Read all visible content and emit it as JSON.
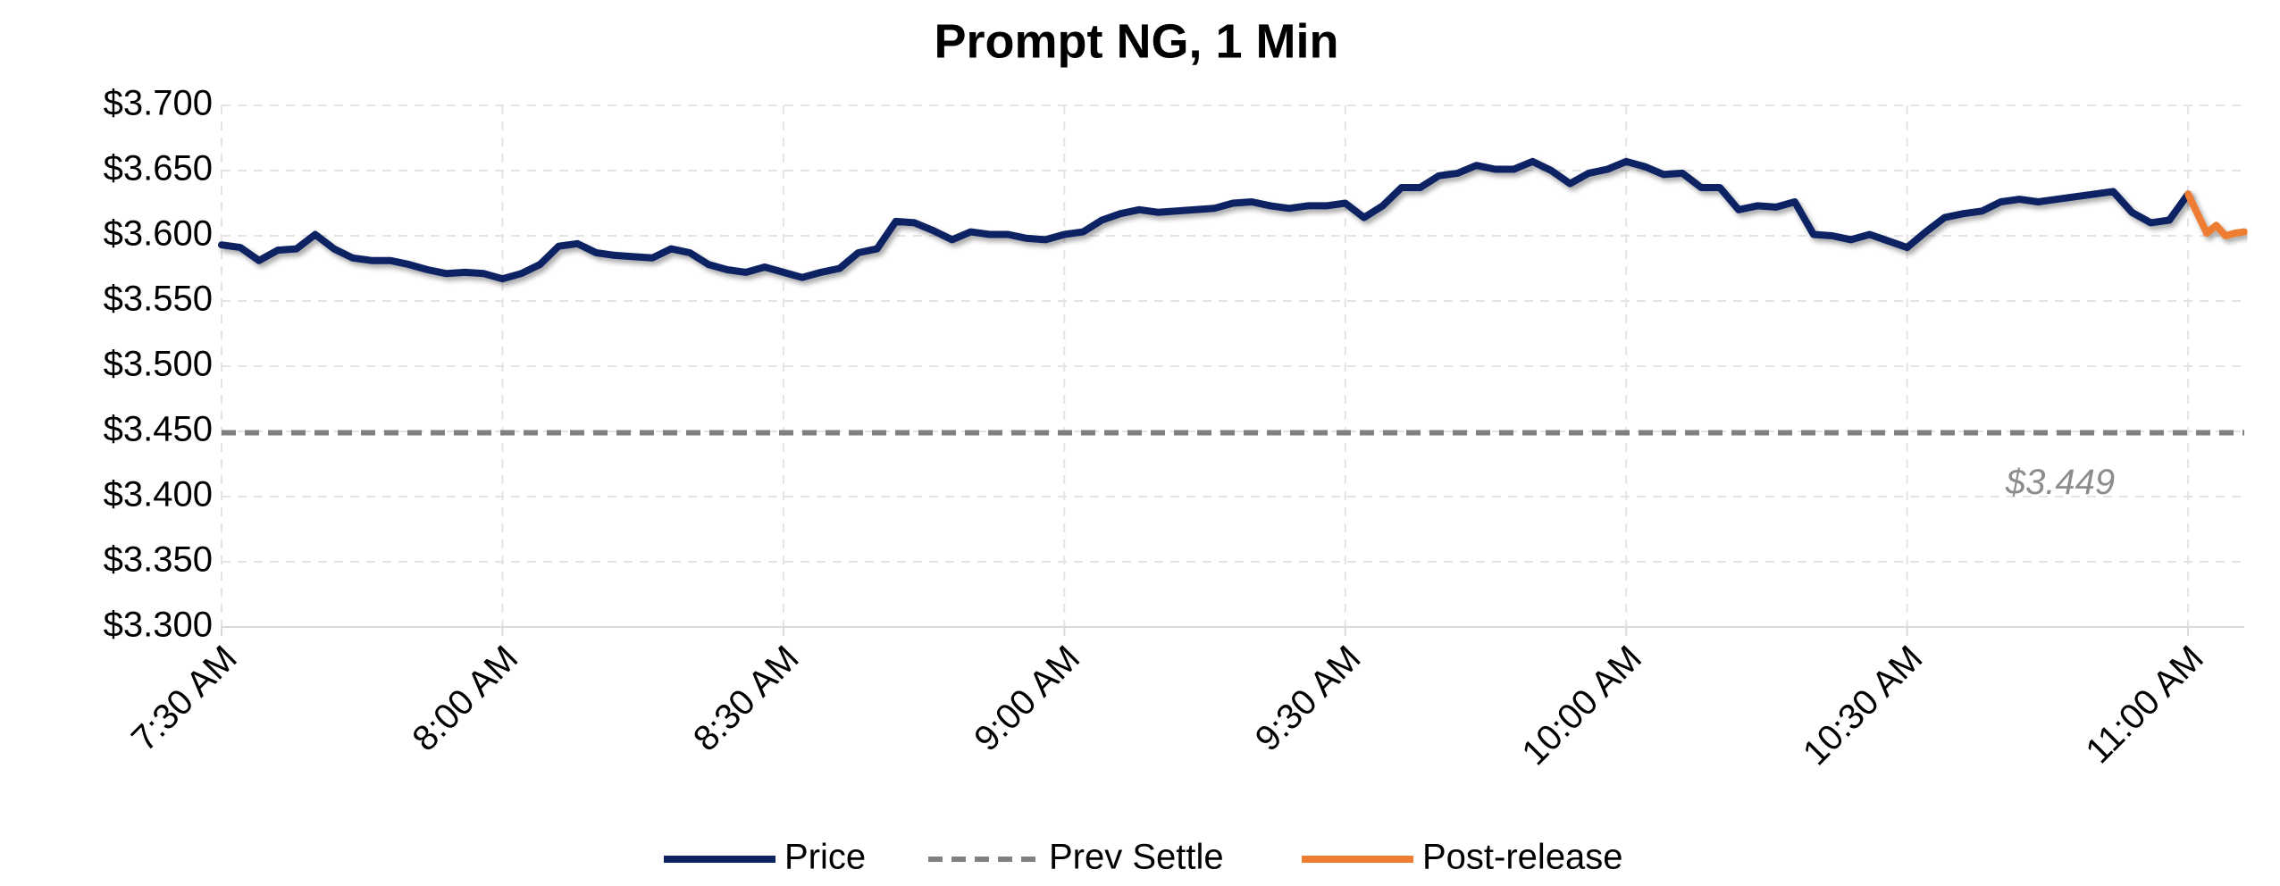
{
  "chart_data": {
    "type": "line",
    "title": "Prompt NG, 1 Min",
    "x": [
      "7:30 AM",
      "7:32 AM",
      "7:34 AM",
      "7:36 AM",
      "7:38 AM",
      "7:40 AM",
      "7:42 AM",
      "7:44 AM",
      "7:46 AM",
      "7:48 AM",
      "7:50 AM",
      "7:52 AM",
      "7:54 AM",
      "7:56 AM",
      "7:58 AM",
      "8:00 AM",
      "8:02 AM",
      "8:04 AM",
      "8:06 AM",
      "8:08 AM",
      "8:10 AM",
      "8:12 AM",
      "8:14 AM",
      "8:16 AM",
      "8:18 AM",
      "8:20 AM",
      "8:22 AM",
      "8:24 AM",
      "8:26 AM",
      "8:28 AM",
      "8:30 AM",
      "8:32 AM",
      "8:34 AM",
      "8:36 AM",
      "8:38 AM",
      "8:40 AM",
      "8:42 AM",
      "8:44 AM",
      "8:46 AM",
      "8:48 AM",
      "8:50 AM",
      "8:52 AM",
      "8:54 AM",
      "8:56 AM",
      "8:58 AM",
      "9:00 AM",
      "9:02 AM",
      "9:04 AM",
      "9:06 AM",
      "9:08 AM",
      "9:10 AM",
      "9:12 AM",
      "9:14 AM",
      "9:16 AM",
      "9:18 AM",
      "9:20 AM",
      "9:22 AM",
      "9:24 AM",
      "9:26 AM",
      "9:28 AM",
      "9:30 AM",
      "9:32 AM",
      "9:34 AM",
      "9:36 AM",
      "9:38 AM",
      "9:40 AM",
      "9:42 AM",
      "9:44 AM",
      "9:46 AM",
      "9:48 AM",
      "9:50 AM",
      "9:52 AM",
      "9:54 AM",
      "9:56 AM",
      "9:58 AM",
      "10:00 AM",
      "10:02 AM",
      "10:04 AM",
      "10:06 AM",
      "10:08 AM",
      "10:10 AM",
      "10:12 AM",
      "10:14 AM",
      "10:16 AM",
      "10:18 AM",
      "10:20 AM",
      "10:22 AM",
      "10:24 AM",
      "10:26 AM",
      "10:28 AM",
      "10:30 AM",
      "10:32 AM",
      "10:34 AM",
      "10:36 AM",
      "10:38 AM",
      "10:40 AM",
      "10:42 AM",
      "10:44 AM",
      "10:46 AM",
      "10:48 AM",
      "10:50 AM",
      "10:52 AM",
      "10:54 AM",
      "10:56 AM",
      "10:58 AM",
      "11:00 AM",
      "11:01 AM",
      "11:02 AM",
      "11:03 AM",
      "11:04 AM",
      "11:05 AM",
      "11:06 AM"
    ],
    "series": [
      {
        "name": "Price",
        "color": "#0d2463",
        "values": [
          3.593,
          3.591,
          3.581,
          3.589,
          3.59,
          3.601,
          3.59,
          3.583,
          3.581,
          3.581,
          3.578,
          3.574,
          3.571,
          3.572,
          3.571,
          3.567,
          3.571,
          3.578,
          3.592,
          3.594,
          3.587,
          3.585,
          3.584,
          3.583,
          3.59,
          3.587,
          3.578,
          3.574,
          3.572,
          3.576,
          3.572,
          3.568,
          3.572,
          3.575,
          3.587,
          3.59,
          3.611,
          3.61,
          3.604,
          3.597,
          3.603,
          3.601,
          3.601,
          3.598,
          3.597,
          3.601,
          3.603,
          3.612,
          3.617,
          3.62,
          3.618,
          3.619,
          3.62,
          3.621,
          3.625,
          3.626,
          3.623,
          3.621,
          3.623,
          3.623,
          3.625,
          3.614,
          3.623,
          3.637,
          3.637,
          3.646,
          3.648,
          3.654,
          3.651,
          3.651,
          3.657,
          3.65,
          3.64,
          3.648,
          3.651,
          3.657,
          3.653,
          3.647,
          3.648,
          3.637,
          3.637,
          3.62,
          3.623,
          3.622,
          3.626,
          3.601,
          3.6,
          3.597,
          3.601,
          3.596,
          3.591,
          3.603,
          3.614,
          3.617,
          3.619,
          3.626,
          3.628,
          3.626,
          3.628,
          3.63,
          3.632,
          3.634,
          3.618,
          3.61,
          3.612,
          3.632,
          null,
          null,
          null,
          null,
          null,
          null
        ]
      },
      {
        "name": "Prev Settle",
        "color": "#7f7f7f",
        "dashed": true,
        "value": 3.449,
        "value_label": "$3.449"
      },
      {
        "name": "Post-release",
        "color": "#ed7d31",
        "values": [
          null,
          null,
          null,
          null,
          null,
          null,
          null,
          null,
          null,
          null,
          null,
          null,
          null,
          null,
          null,
          null,
          null,
          null,
          null,
          null,
          null,
          null,
          null,
          null,
          null,
          null,
          null,
          null,
          null,
          null,
          null,
          null,
          null,
          null,
          null,
          null,
          null,
          null,
          null,
          null,
          null,
          null,
          null,
          null,
          null,
          null,
          null,
          null,
          null,
          null,
          null,
          null,
          null,
          null,
          null,
          null,
          null,
          null,
          null,
          null,
          null,
          null,
          null,
          null,
          null,
          null,
          null,
          null,
          null,
          null,
          null,
          null,
          null,
          null,
          null,
          null,
          null,
          null,
          null,
          null,
          null,
          null,
          null,
          null,
          null,
          null,
          null,
          null,
          null,
          null,
          null,
          null,
          null,
          null,
          null,
          null,
          null,
          null,
          null,
          null,
          null,
          null,
          null,
          null,
          null,
          3.632,
          3.617,
          3.602,
          3.608,
          3.6,
          3.602,
          3.603
        ]
      }
    ],
    "xlim": [
      "7:30 AM",
      "11:06 AM"
    ],
    "xticks": [
      "7:30 AM",
      "8:00 AM",
      "8:30 AM",
      "9:00 AM",
      "9:30 AM",
      "10:00 AM",
      "10:30 AM",
      "11:00 AM"
    ],
    "ylim": [
      3.3,
      3.7
    ],
    "yticks": [
      {
        "value": 3.3,
        "label": "$3.300"
      },
      {
        "value": 3.35,
        "label": "$3.350"
      },
      {
        "value": 3.4,
        "label": "$3.400"
      },
      {
        "value": 3.45,
        "label": "$3.450"
      },
      {
        "value": 3.5,
        "label": "$3.500"
      },
      {
        "value": 3.55,
        "label": "$3.550"
      },
      {
        "value": 3.6,
        "label": "$3.600"
      },
      {
        "value": 3.65,
        "label": "$3.650"
      },
      {
        "value": 3.7,
        "label": "$3.700"
      }
    ],
    "grid": true,
    "legend": "bottom"
  }
}
